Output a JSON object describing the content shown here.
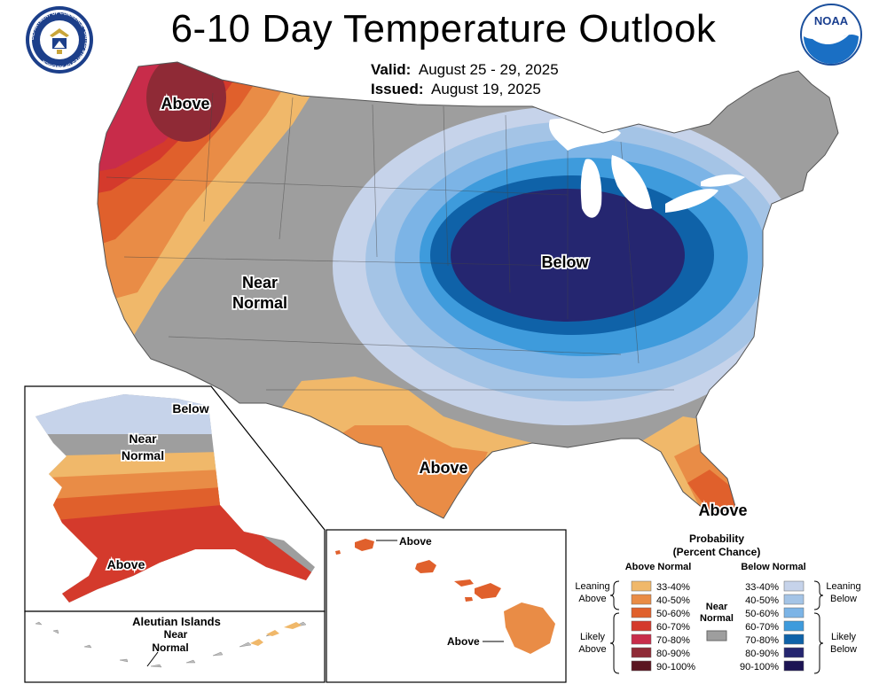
{
  "title": "6-10 Day Temperature Outlook",
  "valid_label": "Valid:",
  "valid_dates": "August 25 - 29, 2025",
  "issued_label": "Issued:",
  "issued_date": "August 19, 2025",
  "logos": {
    "left": "department-of-commerce-seal",
    "left_ring_text": "DEPARTMENT OF COMMERCE · UNITED STATES OF AMERICA",
    "right": "noaa-logo",
    "right_text": "NOAA"
  },
  "map_labels": {
    "pacific_nw": "Above",
    "near_normal_1": "Near",
    "near_normal_2": "Normal",
    "great_lakes": "Below",
    "texas": "Above",
    "florida": "Above",
    "alaska_north": "Below",
    "alaska_near_1": "Near",
    "alaska_near_2": "Normal",
    "alaska_south": "Above",
    "aleutian_title": "Aleutian Islands",
    "aleutian_near_1": "Near",
    "aleutian_near_2": "Normal",
    "hawaii_kauai": "Above",
    "hawaii_big_island": "Above"
  },
  "legend": {
    "title_1": "Probability",
    "title_2": "(Percent Chance)",
    "above_header": "Above Normal",
    "below_header": "Below Normal",
    "near_label_1": "Near",
    "near_label_2": "Normal",
    "leaning_above_1": "Leaning",
    "leaning_above_2": "Above",
    "likely_above_1": "Likely",
    "likely_above_2": "Above",
    "leaning_below_1": "Leaning",
    "leaning_below_2": "Below",
    "likely_below_1": "Likely",
    "likely_below_2": "Below",
    "above_bins": [
      {
        "range": "33-40%",
        "color": "#f0b86a"
      },
      {
        "range": "40-50%",
        "color": "#e98c46"
      },
      {
        "range": "50-60%",
        "color": "#e0602c"
      },
      {
        "range": "60-70%",
        "color": "#d43a2c"
      },
      {
        "range": "70-80%",
        "color": "#c82c4a"
      },
      {
        "range": "80-90%",
        "color": "#8f2a36"
      },
      {
        "range": "90-100%",
        "color": "#5a1520"
      }
    ],
    "below_bins": [
      {
        "range": "33-40%",
        "color": "#c6d3ea"
      },
      {
        "range": "40-50%",
        "color": "#a4c4e6"
      },
      {
        "range": "50-60%",
        "color": "#7cb4e6"
      },
      {
        "range": "60-70%",
        "color": "#3e9bdc"
      },
      {
        "range": "70-80%",
        "color": "#0f62a8"
      },
      {
        "range": "80-90%",
        "color": "#252670"
      },
      {
        "range": "90-100%",
        "color": "#1c1453"
      }
    ],
    "near_color": "#9e9e9e"
  }
}
